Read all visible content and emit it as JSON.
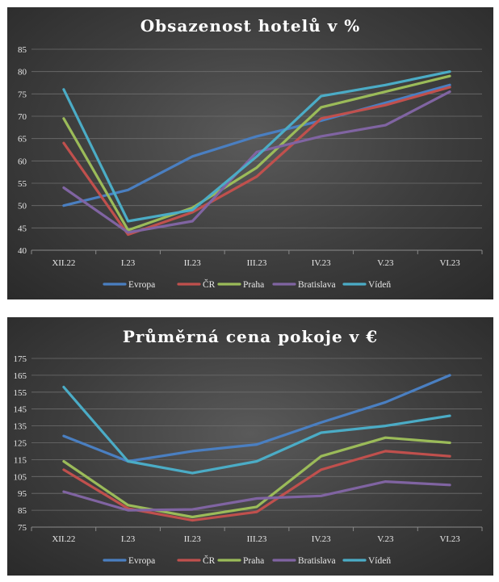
{
  "chart_data": [
    {
      "type": "line",
      "title": "Obsazenost hotelů v %",
      "categories": [
        "XII.22",
        "I.23",
        "II.23",
        "III.23",
        "IV.23",
        "V.23",
        "VI.23"
      ],
      "ylim": [
        40,
        85
      ],
      "yticks": [
        40,
        45,
        50,
        55,
        60,
        65,
        70,
        75,
        80,
        85
      ],
      "grid": true,
      "legend": "bottom",
      "series": [
        {
          "name": "Evropa",
          "color": "#4a7fc1",
          "values": [
            50,
            53.5,
            61,
            65.5,
            69,
            73,
            77
          ]
        },
        {
          "name": "ČR",
          "color": "#c0504d",
          "values": [
            64,
            43.5,
            48.5,
            56.5,
            69.5,
            72.5,
            76.5
          ]
        },
        {
          "name": "Praha",
          "color": "#9bbb59",
          "values": [
            69.5,
            44.5,
            49.5,
            58.5,
            72,
            75.5,
            79
          ]
        },
        {
          "name": "Bratislava",
          "color": "#8064a2",
          "values": [
            54,
            44,
            46.5,
            62,
            65.5,
            68,
            75.5
          ]
        },
        {
          "name": "Vídeň",
          "color": "#4bacc6",
          "values": [
            76,
            46.5,
            49,
            61,
            74.5,
            77,
            80
          ]
        }
      ]
    },
    {
      "type": "line",
      "title": "Průměrná cena pokoje v €",
      "categories": [
        "XII.22",
        "I.23",
        "II.23",
        "III.23",
        "IV.23",
        "V.23",
        "VI.23"
      ],
      "ylim": [
        75,
        175
      ],
      "yticks": [
        75,
        85,
        95,
        105,
        115,
        125,
        135,
        145,
        155,
        165,
        175
      ],
      "grid": true,
      "legend": "bottom",
      "series": [
        {
          "name": "Evropa",
          "color": "#4a7fc1",
          "values": [
            129,
            114,
            120,
            124,
            137,
            149,
            165
          ]
        },
        {
          "name": "ČR",
          "color": "#c0504d",
          "values": [
            109,
            86,
            79,
            84,
            109,
            120,
            117
          ]
        },
        {
          "name": "Praha",
          "color": "#9bbb59",
          "values": [
            114,
            88,
            81,
            87,
            117,
            128,
            125
          ]
        },
        {
          "name": "Bratislava",
          "color": "#8064a2",
          "values": [
            96,
            85,
            85.5,
            92,
            93.5,
            102,
            100
          ]
        },
        {
          "name": "Vídeň",
          "color": "#4bacc6",
          "values": [
            158,
            114,
            107,
            114,
            131,
            135,
            141
          ]
        }
      ]
    }
  ]
}
